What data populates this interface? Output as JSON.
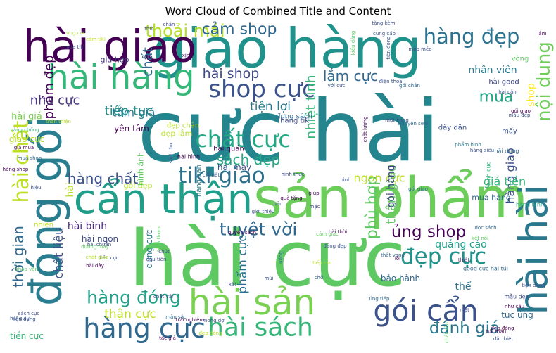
{
  "chart_data": {
    "type": "wordcloud",
    "title": "Word Cloud of Combined Title and Content",
    "colormap": "viridis",
    "background": "#ffffff",
    "words": [
      {
        "text": "cực hài",
        "weight": 1.0,
        "color": "#25858e"
      },
      {
        "text": "hài cực",
        "weight": 0.92,
        "color": "#5ec962"
      },
      {
        "text": "sản phẩm",
        "weight": 0.66,
        "color": "#6ccd5a"
      },
      {
        "text": "giao hàng",
        "weight": 0.64,
        "color": "#21918c"
      },
      {
        "text": "hài giao",
        "weight": 0.52,
        "color": "#440154"
      },
      {
        "text": "đóng gói",
        "weight": 0.52,
        "color": "#287d8e"
      },
      {
        "text": "cẩn thận",
        "weight": 0.48,
        "color": "#1f9e89"
      },
      {
        "text": "hài hài",
        "weight": 0.46,
        "color": "#2a788e"
      },
      {
        "text": "hài sản",
        "weight": 0.42,
        "color": "#7ad151"
      },
      {
        "text": "hài hàng",
        "weight": 0.4,
        "color": "#35b779"
      },
      {
        "text": "gói cẩn",
        "weight": 0.34,
        "color": "#3b528b"
      },
      {
        "text": "hàng cực",
        "weight": 0.32,
        "color": "#31688e"
      },
      {
        "text": "hài sách",
        "weight": 0.3,
        "color": "#35b779"
      },
      {
        "text": "shop cực",
        "weight": 0.28,
        "color": "#3b528b"
      },
      {
        "text": "chất cực",
        "weight": 0.27,
        "color": "#22a884"
      },
      {
        "text": "tiki giao",
        "weight": 0.26,
        "color": "#2c728e"
      },
      {
        "text": "đẹp cực",
        "weight": 0.26,
        "color": "#21918c"
      },
      {
        "text": "hàng đẹp",
        "weight": 0.24,
        "color": "#2c728e"
      },
      {
        "text": "hài chất",
        "weight": 0.24,
        "color": "#bddf26"
      },
      {
        "text": "nội dung",
        "weight": 0.22,
        "color": "#6ece58"
      },
      {
        "text": "hàng đóng",
        "weight": 0.21,
        "color": "#1fa187"
      },
      {
        "text": "tuyệt vời",
        "weight": 0.21,
        "color": "#31688e"
      },
      {
        "text": "thoải mái",
        "weight": 0.2,
        "color": "#b5de2b"
      },
      {
        "text": "cảm shop",
        "weight": 0.18,
        "color": "#31688e"
      },
      {
        "text": "ủng shop",
        "weight": 0.19,
        "color": "#440154"
      },
      {
        "text": "đánh giá",
        "weight": 0.19,
        "color": "#2a788e"
      },
      {
        "text": "phù hợp",
        "weight": 0.18,
        "color": "#5ec962"
      },
      {
        "text": "mua",
        "weight": 0.18,
        "color": "#20a486"
      },
      {
        "text": "hàng chất",
        "weight": 0.17,
        "color": "#3b528b"
      },
      {
        "text": "sách đẹp",
        "weight": 0.17,
        "color": "#22a884"
      },
      {
        "text": "lắm cực",
        "weight": 0.17,
        "color": "#31688e"
      },
      {
        "text": "thời gian",
        "weight": 0.17,
        "color": "#31688e"
      },
      {
        "text": "hài shop",
        "weight": 0.16,
        "color": "#3e4a89"
      },
      {
        "text": "nhiệt tình",
        "weight": 0.16,
        "color": "#35b779"
      },
      {
        "text": "phẩm đẹp",
        "weight": 0.15,
        "color": "#440154"
      },
      {
        "text": "chất",
        "weight": 0.16,
        "color": "#31688e"
      },
      {
        "text": "thân giao",
        "weight": 0.15,
        "color": "#5ec962"
      },
      {
        "text": "tiếp tục",
        "weight": 0.15,
        "color": "#21918c"
      },
      {
        "text": "nha cực",
        "weight": 0.15,
        "color": "#46337e"
      },
      {
        "text": "phẩm cực",
        "weight": 0.14,
        "color": "#2c728e"
      },
      {
        "text": "chất liệu",
        "weight": 0.14,
        "color": "#3b528b"
      },
      {
        "text": "thận cực",
        "weight": 0.14,
        "color": "#bddf26"
      },
      {
        "text": "tiện lợi",
        "weight": 0.14,
        "color": "#2a788e"
      },
      {
        "text": "tầm giá",
        "weight": 0.13,
        "color": "#2a788e"
      },
      {
        "text": "ngon cực",
        "weight": 0.13,
        "color": "#bddf26"
      },
      {
        "text": "hàng giao",
        "weight": 0.13,
        "color": "#3b528b"
      },
      {
        "text": "giá tiền",
        "weight": 0.13,
        "color": "#35b779"
      },
      {
        "text": "quảng cáo",
        "weight": 0.12,
        "color": "#1f9e89"
      },
      {
        "text": "hài bình",
        "weight": 0.12,
        "color": "#482878"
      },
      {
        "text": "nhân viên",
        "weight": 0.12,
        "color": "#2a788e"
      },
      {
        "text": "gói hàng",
        "weight": 0.12,
        "color": "#414487"
      },
      {
        "text": "shop",
        "weight": 0.12,
        "color": "#fde725"
      },
      {
        "text": "hài giá",
        "weight": 0.11,
        "color": "#7ad151"
      },
      {
        "text": "giao cực",
        "weight": 0.1,
        "color": "#b5de2b"
      },
      {
        "text": "bảo hành",
        "weight": 0.1,
        "color": "#31688e"
      },
      {
        "text": "tục ủng",
        "weight": 0.1,
        "color": "#31688e"
      },
      {
        "text": "tiền cực",
        "weight": 0.1,
        "color": "#35b779"
      },
      {
        "text": "hài ngon",
        "weight": 0.1,
        "color": "#3e4a89"
      },
      {
        "text": "thể",
        "weight": 0.12,
        "color": "#2c728e"
      },
      {
        "text": "hài",
        "weight": 0.12,
        "color": "#b5de2b"
      },
      {
        "text": "hài máy",
        "weight": 0.1,
        "color": "#3b528b"
      },
      {
        "text": "yên tâm",
        "weight": 0.1,
        "color": "#440154"
      },
      {
        "text": "đẹp lắm",
        "weight": 0.09,
        "color": "#b5de2b"
      },
      {
        "text": "dụng cực",
        "weight": 0.1,
        "color": "#2a788e"
      },
      {
        "text": "mua hàng",
        "weight": 0.09,
        "color": "#31688e"
      },
      {
        "text": "gói đẹp",
        "weight": 0.09,
        "color": "#b5de2b"
      },
      {
        "text": "hình ảnh",
        "weight": 0.09,
        "color": "#5ec962"
      },
      {
        "text": "giá hợp",
        "weight": 0.09,
        "color": "#46337e"
      },
      {
        "text": "hài good",
        "weight": 0.08,
        "color": "#3e4a89"
      },
      {
        "text": "vòng",
        "weight": 0.08,
        "color": "#5ec962"
      },
      {
        "text": "mấy",
        "weight": 0.08,
        "color": "#3b528b"
      },
      {
        "text": "dày dặn",
        "weight": 0.08,
        "color": "#3b528b"
      },
      {
        "text": "đẹp chắn",
        "weight": 0.08,
        "color": "#b5de2b"
      },
      {
        "text": "hàng tiki",
        "weight": 0.08,
        "color": "#3e4a89"
      },
      {
        "text": "hài quần",
        "weight": 0.08,
        "color": "#440154"
      },
      {
        "text": "đựng sách",
        "weight": 0.08,
        "color": "#31688e"
      },
      {
        "text": "hàng sản",
        "weight": 0.08,
        "color": "#2a788e"
      },
      {
        "text": "hài hình",
        "weight": 0.07,
        "color": "#440154"
      },
      {
        "text": "good cực hài túi",
        "weight": 0.07,
        "color": "#31688e"
      },
      {
        "text": "mẫu đẹp",
        "weight": 0.07,
        "color": "#3e4a89"
      },
      {
        "text": "nhiên",
        "weight": 0.08,
        "color": "#bddf26"
      },
      {
        "text": "hàng hình",
        "weight": 0.07,
        "color": "#1f9e89"
      },
      {
        "text": "hình cực",
        "weight": 0.07,
        "color": "#35b779"
      },
      {
        "text": "hài dụng",
        "weight": 0.07,
        "color": "#31688e"
      },
      {
        "text": "màu đẹp",
        "weight": 0.06,
        "color": "#3b528b"
      },
      {
        "text": "gói giao",
        "weight": 0.06,
        "color": "#440154"
      },
      {
        "text": "đọc sách",
        "weight": 0.06,
        "color": "#31688e"
      },
      {
        "text": "thiết",
        "weight": 0.06,
        "color": "#482878"
      },
      {
        "text": "hài thời",
        "weight": 0.06,
        "color": "#440154"
      },
      {
        "text": "chất vải",
        "weight": 0.06,
        "color": "#3e4a89"
      },
      {
        "text": "tác giả",
        "weight": 0.06,
        "color": "#440154"
      },
      {
        "text": "chất sản",
        "weight": 0.06,
        "color": "#5ec962"
      },
      {
        "text": "giá mua",
        "weight": 0.05,
        "color": "#440154"
      },
      {
        "text": "hàng chống",
        "weight": 0.05,
        "color": "#35b779"
      },
      {
        "text": "đẹp đóng",
        "weight": 0.05,
        "color": "#b5de2b"
      },
      {
        "text": "hài màu",
        "weight": 0.05,
        "color": "#440154"
      },
      {
        "text": "màu sắc",
        "weight": 0.05,
        "color": "#31688e"
      },
      {
        "text": "tiện dụng",
        "weight": 0.05,
        "color": "#3b528b"
      },
      {
        "text": "hài giày",
        "weight": 0.05,
        "color": "#3b528b"
      },
      {
        "text": "shop vận",
        "weight": 0.05,
        "color": "#5ec962"
      },
      {
        "text": "mua shop",
        "weight": 0.05,
        "color": "#31688e"
      },
      {
        "text": "hàng shop",
        "weight": 0.05,
        "color": "#440154"
      },
      {
        "text": "ứng tiếp",
        "weight": 0.05,
        "color": "#31688e"
      },
      {
        "text": "ưng cực",
        "weight": 0.05,
        "color": "#b5de2b"
      },
      {
        "text": "thử",
        "weight": 0.05,
        "color": "#3e4a89"
      },
      {
        "text": "xịn",
        "weight": 0.05,
        "color": "#440154"
      },
      {
        "text": "chắn",
        "weight": 0.04,
        "color": "#3e4a89"
      },
      {
        "text": "kiểu dáng",
        "weight": 0.05,
        "color": "#5ec962"
      },
      {
        "text": "tặng kèm",
        "weight": 0.04,
        "color": "#3b528b"
      },
      {
        "text": "cung cấp",
        "weight": 0.04,
        "color": "#3b528b"
      },
      {
        "text": "lắm",
        "weight": 0.04,
        "color": "#440154"
      },
      {
        "text": "cảm tiki",
        "weight": 0.05,
        "color": "#bddf26"
      },
      {
        "text": "mua tiki",
        "weight": 0.05,
        "color": "#3e4a89"
      },
      {
        "text": "gói chắn",
        "weight": 0.05,
        "color": "#31688e"
      },
      {
        "text": "với cực",
        "weight": 0.05,
        "color": "#3b528b"
      },
      {
        "text": "nguyên seal",
        "weight": 0.04,
        "color": "#31688e"
      },
      {
        "text": "hài cần",
        "weight": 0.04,
        "color": "#3b528b"
      },
      {
        "text": "hàng siêu",
        "weight": 0.06,
        "color": "#3b528b"
      },
      {
        "text": "phẩm hình",
        "weight": 0.06,
        "color": "#2a788e"
      },
      {
        "text": "chi tiết",
        "weight": 0.04,
        "color": "#3b528b"
      },
      {
        "text": "quà tặng",
        "weight": 0.05,
        "color": "#440154"
      },
      {
        "text": "gói giao",
        "weight": 0.05,
        "color": "#31688e"
      },
      {
        "text": "mặc",
        "weight": 0.05,
        "color": "#3e4a89"
      },
      {
        "text": "quyển sách",
        "weight": 0.05,
        "color": "#440154"
      },
      {
        "text": "đáng đẹp",
        "weight": 0.04,
        "color": "#3b528b"
      },
      {
        "text": "cảm giác",
        "weight": 0.05,
        "color": "#5ec962"
      },
      {
        "text": "thất vọng",
        "weight": 0.04,
        "color": "#31688e"
      },
      {
        "text": "kết nối",
        "weight": 0.05,
        "color": "#5ec962"
      },
      {
        "text": "tiếp cực",
        "weight": 0.05,
        "color": "#b5de2b"
      },
      {
        "text": "uống",
        "weight": 0.04,
        "color": "#31688e"
      },
      {
        "text": "trải nghiệm",
        "weight": 0.04,
        "color": "#440154"
      },
      {
        "text": "mong đợi",
        "weight": 0.05,
        "color": "#3b528b"
      },
      {
        "text": "đẹp đóng",
        "weight": 0.04,
        "color": "#440154"
      },
      {
        "text": "đặc biệt",
        "weight": 0.04,
        "color": "#3b528b"
      },
      {
        "text": "như cầu",
        "weight": 0.04,
        "color": "#440154"
      },
      {
        "text": "tiện dụng",
        "weight": 0.04,
        "color": "#3b528b"
      },
      {
        "text": "lỗi",
        "weight": 0.05,
        "color": "#440154"
      },
      {
        "text": "mặt",
        "weight": 0.05,
        "color": "#3e4a89"
      },
      {
        "text": "chỗ",
        "weight": 0.05,
        "color": "#31688e"
      },
      {
        "text": "xài",
        "weight": 0.06,
        "color": "#3e4a89"
      },
      {
        "text": "mùi",
        "weight": 0.05,
        "color": "#3b528b"
      },
      {
        "text": "bền cực",
        "weight": 0.05,
        "color": "#3b528b"
      },
      {
        "text": "sách cực",
        "weight": 0.05,
        "color": "#3e4a89"
      },
      {
        "text": "hài dây",
        "weight": 0.05,
        "color": "#440154"
      },
      {
        "text": "chất giao",
        "weight": 0.05,
        "color": "#b5de2b"
      },
      {
        "text": "đầu tiên",
        "weight": 0.04,
        "color": "#3e4a89"
      },
      {
        "text": "biến thơm",
        "weight": 0.04,
        "color": "#5ec962"
      },
      {
        "text": "hài chuẩn",
        "weight": 0.04,
        "color": "#3b528b"
      },
      {
        "text": "đường may",
        "weight": 0.04,
        "color": "#5ec962"
      },
      {
        "text": "chút",
        "weight": 0.05,
        "color": "#3e4a89"
      },
      {
        "text": "bản",
        "weight": 0.05,
        "color": "#3b528b"
      },
      {
        "text": "giúp",
        "weight": 0.04,
        "color": "#440154"
      },
      {
        "text": "hiệu",
        "weight": 0.04,
        "color": "#3b528b"
      },
      {
        "text": "thân thiện",
        "weight": 0.05,
        "color": "#b5de2b"
      },
      {
        "text": "sách đọc",
        "weight": 0.04,
        "color": "#3b528b"
      },
      {
        "text": "hình thức",
        "weight": 0.04,
        "color": "#3e4a89"
      },
      {
        "text": "bình",
        "weight": 0.05,
        "color": "#3b528b"
      },
      {
        "text": "giới thiệu",
        "weight": 0.04,
        "color": "#3b528b"
      },
      {
        "text": "chất lượng",
        "weight": 0.04,
        "color": "#440154"
      },
      {
        "text": "mặt hàng",
        "weight": 0.04,
        "color": "#3b528b"
      },
      {
        "text": "điện thoại",
        "weight": 0.04,
        "color": "#3b528b"
      },
      {
        "text": "tiện đóng",
        "weight": 0.04,
        "color": "#3b528b"
      },
      {
        "text": "mộp méo",
        "weight": 0.04,
        "color": "#3e4a89"
      }
    ]
  }
}
